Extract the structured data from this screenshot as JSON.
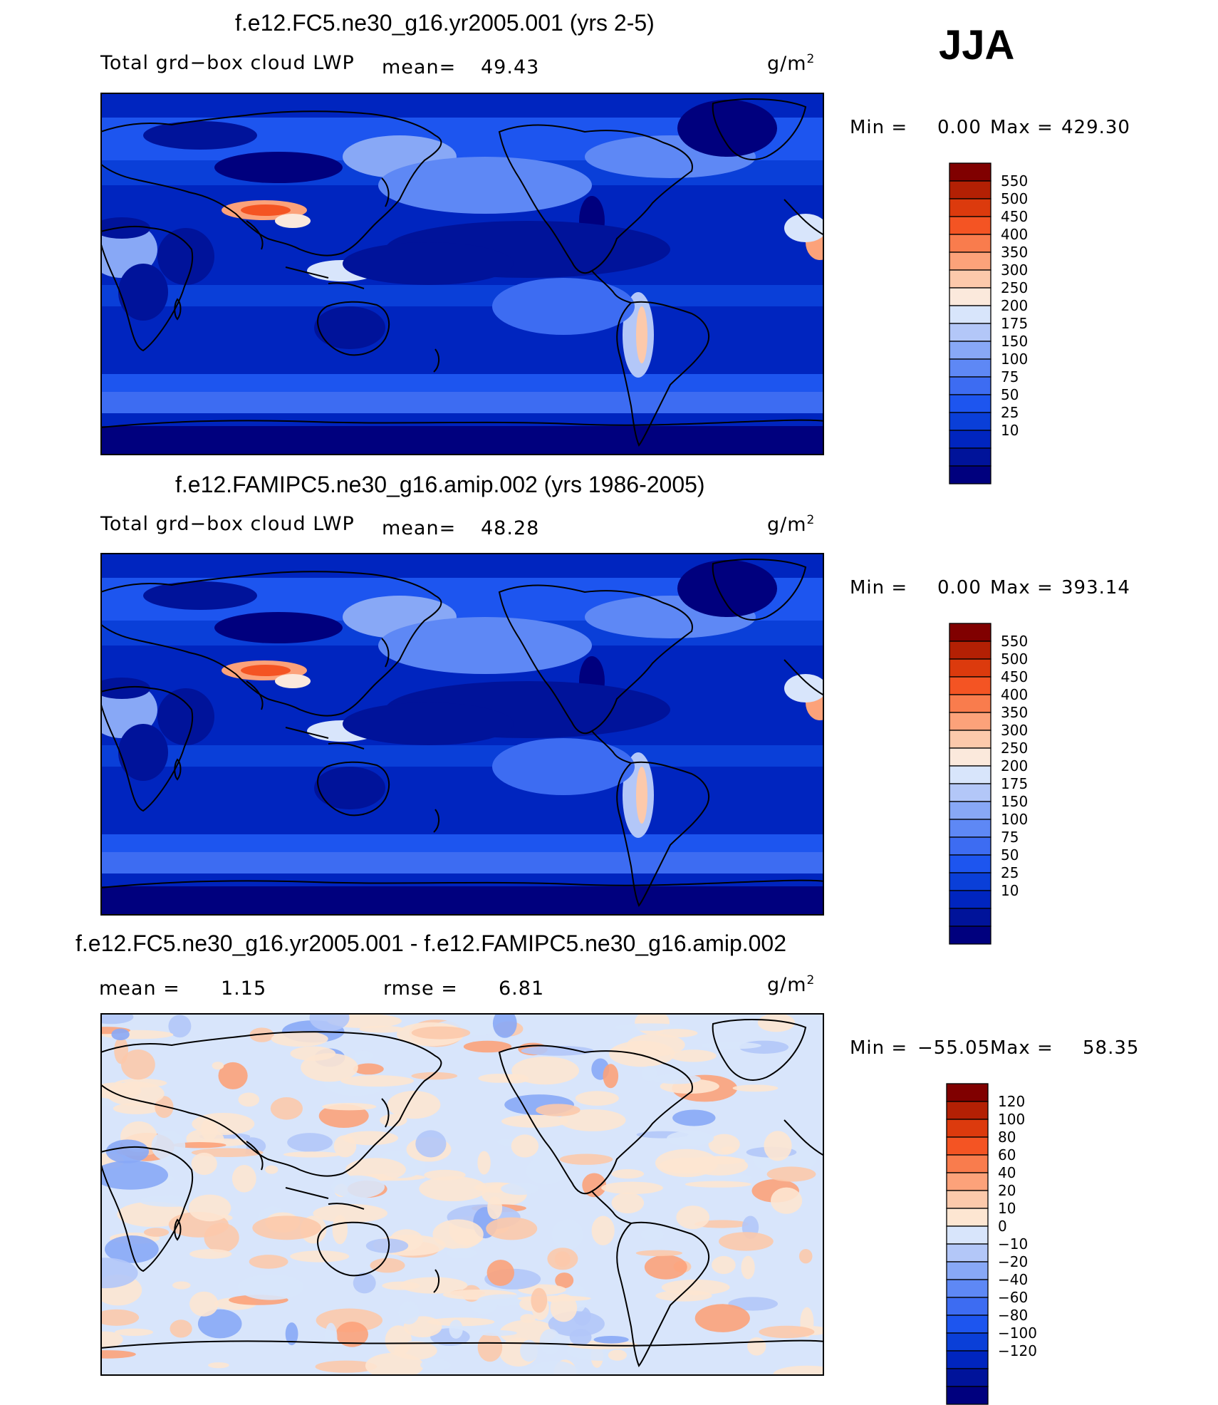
{
  "season": "JJA",
  "colors": {
    "abs_scale": [
      "#00007e",
      "#00139a",
      "#0025bf",
      "#0a3fd8",
      "#1d55ef",
      "#3d6cf2",
      "#5e88f5",
      "#88a8f6",
      "#b3c7f8",
      "#d8e5fb",
      "#fbe9dc",
      "#fcc9ab",
      "#fca27a",
      "#f97c4d",
      "#f45423",
      "#dc3a0d",
      "#b32004",
      "#800000"
    ],
    "diff_scale": [
      "#00007e",
      "#00139a",
      "#0025bf",
      "#0a3fd8",
      "#1d55ef",
      "#3d6cf2",
      "#5e88f5",
      "#88a8f6",
      "#b3c7f8",
      "#d8e5fb",
      "#fde6d2",
      "#fcc9ab",
      "#fca27a",
      "#f97c4d",
      "#f45423",
      "#dc3a0d",
      "#b32004",
      "#800000"
    ]
  },
  "panels": [
    {
      "title": "f.e12.FC5.ne30_g16.yr2005.001 (yrs 2-5)",
      "variable": "Total grd−box cloud LWP",
      "mean_label": "mean=",
      "mean_value": "49.43",
      "units": "g/m",
      "units_exp": "2",
      "min_label": "Min =",
      "min_value": "0.00",
      "max_label": "Max =",
      "max_value": "429.30",
      "contour_levels": [
        "550",
        "500",
        "450",
        "400",
        "350",
        "300",
        "250",
        "200",
        "175",
        "150",
        "100",
        "75",
        "50",
        "25",
        "10"
      ],
      "map_style": "abs"
    },
    {
      "title": "f.e12.FAMIPC5.ne30_g16.amip.002 (yrs 1986-2005)",
      "variable": "Total grd−box cloud LWP",
      "mean_label": "mean=",
      "mean_value": "48.28",
      "units": "g/m",
      "units_exp": "2",
      "min_label": "Min =",
      "min_value": "0.00",
      "max_label": "Max =",
      "max_value": "393.14",
      "contour_levels": [
        "550",
        "500",
        "450",
        "400",
        "350",
        "300",
        "250",
        "200",
        "175",
        "150",
        "100",
        "75",
        "50",
        "25",
        "10"
      ],
      "map_style": "abs"
    },
    {
      "title": "f.e12.FC5.ne30_g16.yr2005.001 - f.e12.FAMIPC5.ne30_g16.amip.002",
      "mean_label": "mean =",
      "mean_value": "1.15",
      "rmse_label": "rmse =",
      "rmse_value": "6.81",
      "units": "g/m",
      "units_exp": "2",
      "min_label": "Min =",
      "min_value": "−55.05",
      "max_label": "Max =",
      "max_value": "58.35",
      "contour_levels": [
        "120",
        "100",
        "80",
        "60",
        "40",
        "20",
        "10",
        "0",
        "−10",
        "−20",
        "−40",
        "−60",
        "−80",
        "−100",
        "−120"
      ],
      "map_style": "diff"
    }
  ]
}
